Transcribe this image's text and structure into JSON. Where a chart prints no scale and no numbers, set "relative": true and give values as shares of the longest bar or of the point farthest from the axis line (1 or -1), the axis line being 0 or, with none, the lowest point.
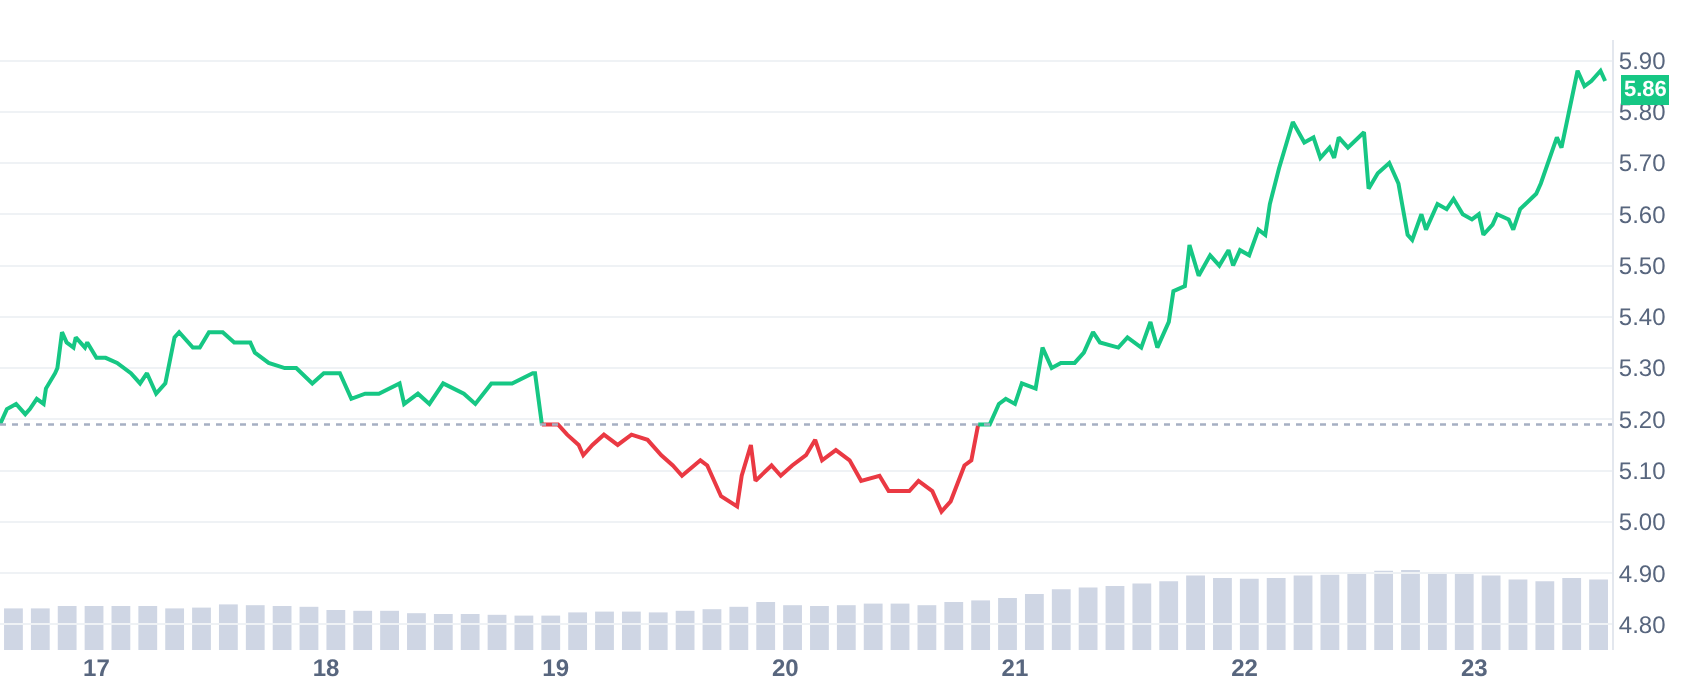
{
  "chart_data": [
    {
      "type": "line",
      "xlim": [
        16.58,
        23.6
      ],
      "xticks": [
        17,
        18,
        19,
        20,
        21,
        22,
        23
      ],
      "ylim": [
        4.75,
        5.94
      ],
      "yticks": [
        {
          "value": 4.8,
          "label": "4.80"
        },
        {
          "value": 4.9,
          "label": "4.90"
        },
        {
          "value": 5.0,
          "label": "5.00"
        },
        {
          "value": 5.1,
          "label": "5.10"
        },
        {
          "value": 5.2,
          "label": "5.20"
        },
        {
          "value": 5.3,
          "label": "5.30"
        },
        {
          "value": 5.4,
          "label": "5.40"
        },
        {
          "value": 5.5,
          "label": "5.50"
        },
        {
          "value": 5.6,
          "label": "5.60"
        },
        {
          "value": 5.7,
          "label": "5.70"
        },
        {
          "value": 5.8,
          "label": "5.80"
        },
        {
          "value": 5.9,
          "label": "5.90"
        }
      ],
      "grid": "y",
      "marker": "none",
      "line_style": "solid",
      "ref_lines": [
        {
          "axis": "y",
          "value": 5.19,
          "color": "#a6b0c3",
          "line_style": "dotted"
        }
      ],
      "annotations": [
        {
          "text": "5.86",
          "x": 23.57,
          "y": 5.86
        }
      ],
      "series": [
        {
          "color": "#16c784",
          "x": [
            16.58,
            16.61,
            16.65,
            16.69,
            16.71,
            16.74,
            16.77,
            16.78,
            16.82,
            16.83,
            16.85,
            16.87,
            16.9,
            16.91,
            16.95,
            16.96,
            17.0,
            17.04,
            17.09,
            17.15,
            17.19,
            17.22,
            17.26,
            17.3,
            17.34,
            17.36,
            17.42,
            17.45,
            17.49,
            17.55,
            17.6,
            17.67,
            17.69,
            17.75,
            17.82,
            17.87,
            17.94,
            17.99,
            18.06,
            18.11,
            18.17,
            18.23,
            18.32,
            18.34,
            18.4,
            18.45,
            18.51,
            18.6,
            18.65,
            18.72,
            18.81,
            18.9,
            18.91,
            18.94
          ],
          "values": [
            5.19,
            5.22,
            5.23,
            5.21,
            5.22,
            5.24,
            5.23,
            5.26,
            5.29,
            5.3,
            5.37,
            5.35,
            5.34,
            5.36,
            5.34,
            5.35,
            5.32,
            5.32,
            5.31,
            5.29,
            5.27,
            5.29,
            5.25,
            5.27,
            5.36,
            5.37,
            5.34,
            5.34,
            5.37,
            5.37,
            5.35,
            5.35,
            5.33,
            5.31,
            5.3,
            5.3,
            5.27,
            5.29,
            5.29,
            5.24,
            5.25,
            5.25,
            5.27,
            5.23,
            5.25,
            5.23,
            5.27,
            5.25,
            5.23,
            5.27,
            5.27,
            5.29,
            5.29,
            5.19
          ]
        },
        {
          "color": "#ea3943",
          "x": [
            18.94,
            18.99,
            19.01,
            19.05,
            19.1,
            19.12,
            19.16,
            19.21,
            19.27,
            19.33,
            19.4,
            19.46,
            19.51,
            19.55,
            19.63,
            19.66,
            19.72,
            19.79,
            19.81,
            19.85,
            19.87,
            19.94,
            19.98,
            20.03,
            20.09,
            20.13,
            20.16,
            20.22,
            20.28,
            20.33,
            20.41,
            20.45,
            20.54,
            20.58,
            20.64,
            20.68,
            20.72,
            20.78,
            20.81,
            20.84
          ],
          "values": [
            5.19,
            5.19,
            5.19,
            5.17,
            5.15,
            5.13,
            5.15,
            5.17,
            5.15,
            5.17,
            5.16,
            5.13,
            5.11,
            5.09,
            5.12,
            5.11,
            5.05,
            5.03,
            5.09,
            5.15,
            5.08,
            5.11,
            5.09,
            5.11,
            5.13,
            5.16,
            5.12,
            5.14,
            5.12,
            5.08,
            5.09,
            5.06,
            5.06,
            5.08,
            5.06,
            5.02,
            5.04,
            5.11,
            5.12,
            5.19
          ]
        },
        {
          "color": "#16c784",
          "x": [
            20.84,
            20.89,
            20.93,
            20.96,
            21.0,
            21.03,
            21.09,
            21.12,
            21.16,
            21.2,
            21.26,
            21.3,
            21.34,
            21.37,
            21.45,
            21.49,
            21.55,
            21.59,
            21.62,
            21.67,
            21.69,
            21.74,
            21.76,
            21.8,
            21.85,
            21.89,
            21.93,
            21.95,
            21.98,
            22.02,
            22.06,
            22.09,
            22.11,
            22.15,
            22.21,
            22.26,
            22.3,
            22.33,
            22.37,
            22.39,
            22.41,
            22.45,
            22.52,
            22.54,
            22.58,
            22.63,
            22.67,
            22.71,
            22.73,
            22.77,
            22.79,
            22.84,
            22.88,
            22.91,
            22.95,
            22.99,
            23.02,
            23.04,
            23.08,
            23.1,
            23.15,
            23.17,
            23.2,
            23.27,
            23.29,
            23.36,
            23.38,
            23.45,
            23.48,
            23.51,
            23.55,
            23.57
          ],
          "values": [
            5.19,
            5.19,
            5.23,
            5.24,
            5.23,
            5.27,
            5.26,
            5.34,
            5.3,
            5.31,
            5.31,
            5.33,
            5.37,
            5.35,
            5.34,
            5.36,
            5.34,
            5.39,
            5.34,
            5.39,
            5.45,
            5.46,
            5.54,
            5.48,
            5.52,
            5.5,
            5.53,
            5.5,
            5.53,
            5.52,
            5.57,
            5.56,
            5.62,
            5.69,
            5.78,
            5.74,
            5.75,
            5.71,
            5.73,
            5.71,
            5.75,
            5.73,
            5.76,
            5.65,
            5.68,
            5.7,
            5.66,
            5.56,
            5.55,
            5.6,
            5.57,
            5.62,
            5.61,
            5.63,
            5.6,
            5.59,
            5.6,
            5.56,
            5.58,
            5.6,
            5.59,
            5.57,
            5.61,
            5.64,
            5.66,
            5.75,
            5.73,
            5.88,
            5.85,
            5.86,
            5.88,
            5.86
          ]
        }
      ]
    },
    {
      "type": "bar",
      "relative": true,
      "color": "#cfd6e4",
      "categories": [
        null,
        null,
        null,
        null,
        null,
        null,
        null,
        null,
        null,
        null,
        null,
        null,
        null,
        null,
        null,
        null,
        null,
        null,
        null,
        null,
        null,
        null,
        null,
        null,
        null,
        null,
        null,
        null,
        null,
        null,
        null,
        null,
        null,
        null,
        null,
        null,
        null,
        null,
        null,
        null,
        null,
        null,
        null,
        null,
        null,
        null,
        null,
        null,
        null,
        null,
        null,
        null,
        null,
        null,
        null,
        null,
        null,
        null,
        null,
        null
      ],
      "values": [
        0.52,
        0.52,
        0.55,
        0.55,
        0.55,
        0.55,
        0.52,
        0.53,
        0.57,
        0.56,
        0.55,
        0.54,
        0.5,
        0.49,
        0.49,
        0.46,
        0.45,
        0.45,
        0.44,
        0.43,
        0.43,
        0.47,
        0.48,
        0.48,
        0.47,
        0.49,
        0.51,
        0.54,
        0.6,
        0.56,
        0.55,
        0.56,
        0.58,
        0.58,
        0.56,
        0.6,
        0.62,
        0.65,
        0.7,
        0.76,
        0.78,
        0.8,
        0.83,
        0.86,
        0.93,
        0.9,
        0.89,
        0.9,
        0.93,
        0.94,
        0.95,
        0.99,
        1,
        0.96,
        0.95,
        0.93,
        0.88,
        0.86,
        0.9,
        0.88
      ]
    }
  ]
}
